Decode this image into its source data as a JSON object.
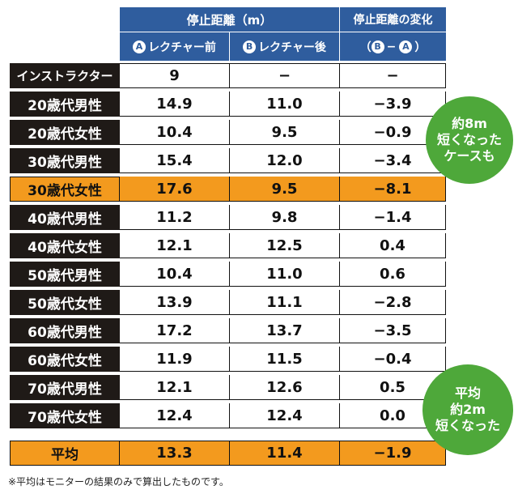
{
  "header": {
    "distance_title": "停止距離（m）",
    "change_title": "停止距離の変化",
    "before_marker": "A",
    "before_label": "レクチャー前",
    "after_marker": "B",
    "after_label": "レクチャー後",
    "change_formula": {
      "open": "（",
      "b": "B",
      "minus": "−",
      "a": "A",
      "close": "）"
    }
  },
  "rows": [
    {
      "label": "インストラクター",
      "before": "9",
      "after": "−",
      "change": "−"
    },
    {
      "label": "20歳代男性",
      "before": "14.9",
      "after": "11.0",
      "change": "−3.9"
    },
    {
      "label": "20歳代女性",
      "before": "10.4",
      "after": "9.5",
      "change": "−0.9"
    },
    {
      "label": "30歳代男性",
      "before": "15.4",
      "after": "12.0",
      "change": "−3.4"
    },
    {
      "label": "30歳代女性",
      "before": "17.6",
      "after": "9.5",
      "change": "−8.1"
    },
    {
      "label": "40歳代男性",
      "before": "11.2",
      "after": "9.8",
      "change": "−1.4"
    },
    {
      "label": "40歳代女性",
      "before": "12.1",
      "after": "12.5",
      "change": "0.4"
    },
    {
      "label": "50歳代男性",
      "before": "10.4",
      "after": "11.0",
      "change": "0.6"
    },
    {
      "label": "50歳代女性",
      "before": "13.9",
      "after": "11.1",
      "change": "−2.8"
    },
    {
      "label": "60歳代男性",
      "before": "17.2",
      "after": "13.7",
      "change": "−3.5"
    },
    {
      "label": "60歳代女性",
      "before": "11.9",
      "after": "11.5",
      "change": "−0.4"
    },
    {
      "label": "70歳代男性",
      "before": "12.1",
      "after": "12.6",
      "change": "0.5"
    },
    {
      "label": "70歳代女性",
      "before": "12.4",
      "after": "12.4",
      "change": "0.0"
    },
    {
      "label": "平均",
      "before": "13.3",
      "after": "11.4",
      "change": "−1.9"
    }
  ],
  "bubbles": [
    {
      "line1": "約8m",
      "line2": "短くなった",
      "line3": "ケースも"
    },
    {
      "line1": "平均",
      "line2": "約2m",
      "line3": "短くなった"
    }
  ],
  "footnote": "※平均はモニターの結果のみで算出したものです。",
  "colors": {
    "header": "#2f5d9e",
    "label_bg": "#1f1a17",
    "highlight": "#f39a1e",
    "bubble": "#4ea83a"
  }
}
